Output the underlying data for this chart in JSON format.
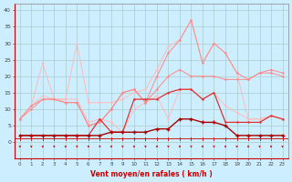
{
  "hours": [
    0,
    1,
    2,
    3,
    4,
    5,
    6,
    7,
    8,
    9,
    10,
    11,
    12,
    13,
    14,
    15,
    16,
    17,
    18,
    19,
    20,
    21,
    22,
    23
  ],
  "series": {
    "s1_light_spiky": [
      7,
      11,
      24,
      13,
      13,
      30,
      12,
      12,
      12,
      13,
      15,
      16,
      22,
      29,
      31,
      37,
      24,
      30,
      27,
      21,
      7,
      7,
      8,
      7
    ],
    "s2_light_bump": [
      7,
      11,
      14,
      13,
      13,
      13,
      6,
      7,
      6,
      3,
      10,
      12,
      14,
      7,
      16,
      16,
      13,
      15,
      11,
      9,
      7,
      7,
      8,
      7
    ],
    "s3_med_rising": [
      7,
      11,
      13,
      13,
      12,
      12,
      5,
      6,
      10,
      15,
      16,
      12,
      16,
      20,
      22,
      20,
      20,
      20,
      19,
      19,
      19,
      21,
      21,
      20
    ],
    "s4_med_rising2": [
      7,
      10,
      13,
      13,
      12,
      12,
      5,
      6,
      10,
      15,
      16,
      12,
      20,
      27,
      31,
      37,
      24,
      30,
      27,
      21,
      19,
      21,
      22,
      21
    ],
    "s5_dark_avg": [
      2,
      2,
      2,
      2,
      2,
      2,
      2,
      7,
      3,
      3,
      13,
      13,
      13,
      15,
      16,
      16,
      13,
      15,
      6,
      6,
      6,
      6,
      8,
      7
    ],
    "s6_darkest_avg": [
      2,
      2,
      2,
      2,
      2,
      2,
      2,
      2,
      3,
      3,
      3,
      3,
      4,
      4,
      7,
      7,
      6,
      6,
      5,
      2,
      2,
      2,
      2,
      2
    ]
  },
  "colors": {
    "s1": "#ffbbbb",
    "s2": "#ffbbbb",
    "s3": "#ff8888",
    "s4": "#ff8888",
    "s5": "#dd3333",
    "s6": "#aa0000"
  },
  "bg_color": "#cceeff",
  "grid_color": "#aacccc",
  "xlabel": "Vent moyen/en rafales ( km/h )",
  "xlabel_color": "#cc0000",
  "yticks": [
    0,
    5,
    10,
    15,
    20,
    25,
    30,
    35,
    40
  ],
  "ylim": [
    -5,
    42
  ],
  "xlim": [
    -0.5,
    23.5
  ]
}
